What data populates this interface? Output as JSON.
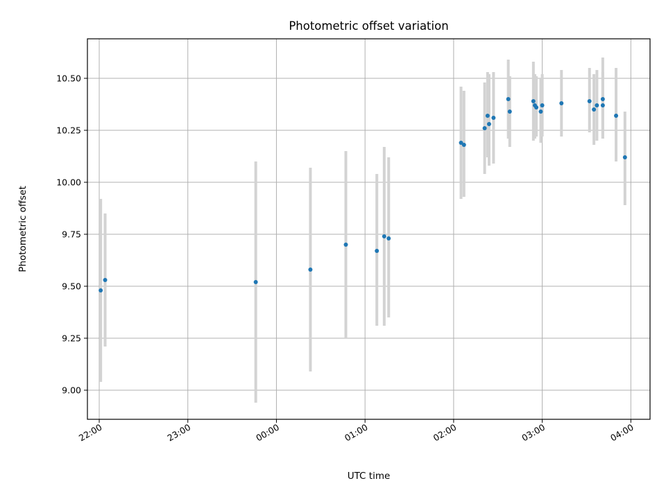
{
  "chart_data": {
    "type": "scatter",
    "title": "Photometric offset variation",
    "xlabel": "UTC time",
    "ylabel": "Photometric offset",
    "x_unit": "UTC time (HH:MM), evening 22:00 to next-day 04:00",
    "xlim": [
      "21:52",
      "04:13"
    ],
    "ylim": [
      8.86,
      10.69
    ],
    "x_ticks": [
      "22:00",
      "23:00",
      "00:00",
      "01:00",
      "02:00",
      "03:00",
      "04:00"
    ],
    "y_ticks": [
      9.0,
      9.25,
      9.5,
      9.75,
      10.0,
      10.25,
      10.5
    ],
    "y_tick_labels": [
      "9.00",
      "9.25",
      "9.50",
      "9.75",
      "10.00",
      "10.25",
      "10.50"
    ],
    "grid": true,
    "point_color": "#1f77b4",
    "errorbar_color": "#d3d3d3",
    "points": [
      {
        "x": "22:01",
        "y": 9.48,
        "ylow": 9.04,
        "yhigh": 9.92
      },
      {
        "x": "22:04",
        "y": 9.53,
        "ylow": 9.21,
        "yhigh": 9.85
      },
      {
        "x": "23:46",
        "y": 9.52,
        "ylow": 8.94,
        "yhigh": 10.1
      },
      {
        "x": "00:23",
        "y": 9.58,
        "ylow": 9.09,
        "yhigh": 10.07
      },
      {
        "x": "00:47",
        "y": 9.7,
        "ylow": 9.25,
        "yhigh": 10.15
      },
      {
        "x": "01:08",
        "y": 9.67,
        "ylow": 9.31,
        "yhigh": 10.04
      },
      {
        "x": "01:13",
        "y": 9.74,
        "ylow": 9.31,
        "yhigh": 10.17
      },
      {
        "x": "01:16",
        "y": 9.73,
        "ylow": 9.35,
        "yhigh": 10.12
      },
      {
        "x": "02:05",
        "y": 10.19,
        "ylow": 9.92,
        "yhigh": 10.46
      },
      {
        "x": "02:07",
        "y": 10.18,
        "ylow": 9.93,
        "yhigh": 10.44
      },
      {
        "x": "02:21",
        "y": 10.26,
        "ylow": 10.04,
        "yhigh": 10.48
      },
      {
        "x": "02:23",
        "y": 10.32,
        "ylow": 10.12,
        "yhigh": 10.53
      },
      {
        "x": "02:24",
        "y": 10.28,
        "ylow": 10.08,
        "yhigh": 10.52
      },
      {
        "x": "02:27",
        "y": 10.31,
        "ylow": 10.09,
        "yhigh": 10.53
      },
      {
        "x": "02:37",
        "y": 10.4,
        "ylow": 10.21,
        "yhigh": 10.59
      },
      {
        "x": "02:38",
        "y": 10.34,
        "ylow": 10.17,
        "yhigh": 10.51
      },
      {
        "x": "02:54",
        "y": 10.39,
        "ylow": 10.2,
        "yhigh": 10.58
      },
      {
        "x": "02:55",
        "y": 10.37,
        "ylow": 10.21,
        "yhigh": 10.52
      },
      {
        "x": "02:56",
        "y": 10.36,
        "ylow": 10.22,
        "yhigh": 10.51
      },
      {
        "x": "02:59",
        "y": 10.34,
        "ylow": 10.19,
        "yhigh": 10.5
      },
      {
        "x": "03:00",
        "y": 10.37,
        "ylow": 10.22,
        "yhigh": 10.52
      },
      {
        "x": "03:13",
        "y": 10.38,
        "ylow": 10.22,
        "yhigh": 10.54
      },
      {
        "x": "03:32",
        "y": 10.39,
        "ylow": 10.24,
        "yhigh": 10.55
      },
      {
        "x": "03:35",
        "y": 10.35,
        "ylow": 10.18,
        "yhigh": 10.52
      },
      {
        "x": "03:37",
        "y": 10.37,
        "ylow": 10.2,
        "yhigh": 10.54
      },
      {
        "x": "03:41",
        "y": 10.37,
        "ylow": 10.21,
        "yhigh": 10.53
      },
      {
        "x": "03:41",
        "y": 10.4,
        "ylow": 10.21,
        "yhigh": 10.6
      },
      {
        "x": "03:50",
        "y": 10.32,
        "ylow": 10.1,
        "yhigh": 10.55
      },
      {
        "x": "03:56",
        "y": 10.12,
        "ylow": 9.89,
        "yhigh": 10.34
      }
    ]
  }
}
